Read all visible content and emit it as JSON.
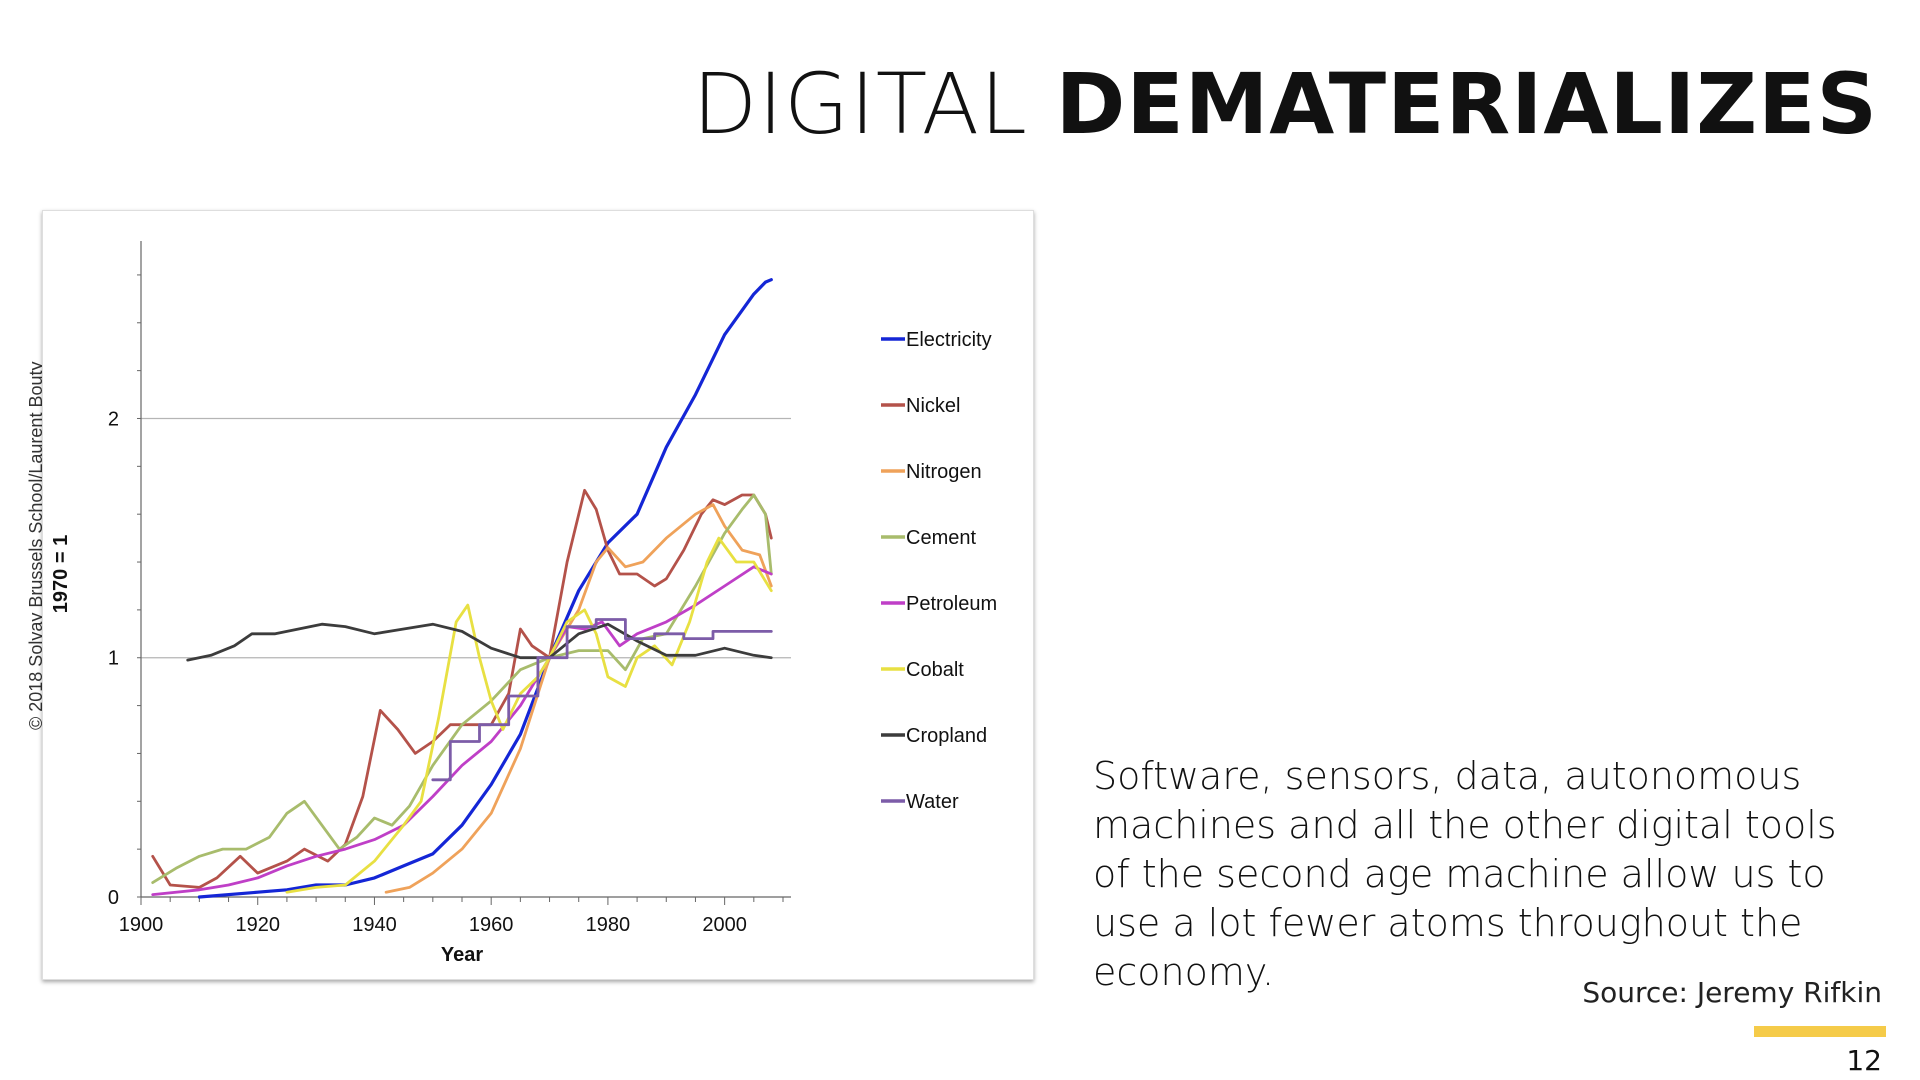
{
  "slide": {
    "title_light": "DIGITAL",
    "title_bold": "DEMATERIALIZES",
    "copyright": "© 2018 Solvay Brussels School/Laurent Bouty",
    "body": "Software, sensors, data, autonomous machines and all the other digital tools of the second age machine allow us to use a lot fewer atoms throughout the economy.",
    "source": "Source: Jeremy Rifkin",
    "page_number": "12",
    "accent_color": "#F5CB49"
  },
  "chart_data": {
    "type": "line",
    "xlabel": "Year",
    "ylabel": "1970 = 1",
    "xlim": [
      1900,
      2010
    ],
    "ylim": [
      0,
      2.7
    ],
    "x_ticks": [
      "1900",
      "1920",
      "1940",
      "1960",
      "1980",
      "2000"
    ],
    "y_ticks": [
      "0",
      "1",
      "2"
    ],
    "grid": "horizontal lines at 1 and 2",
    "legend_position": "right",
    "series": [
      {
        "name": "Electricity",
        "color": "#1426D6",
        "points": [
          [
            1910,
            0
          ],
          [
            1920,
            0.02
          ],
          [
            1925,
            0.03
          ],
          [
            1930,
            0.05
          ],
          [
            1935,
            0.05
          ],
          [
            1940,
            0.08
          ],
          [
            1945,
            0.13
          ],
          [
            1950,
            0.18
          ],
          [
            1955,
            0.3
          ],
          [
            1960,
            0.47
          ],
          [
            1965,
            0.68
          ],
          [
            1970,
            1.0
          ],
          [
            1975,
            1.28
          ],
          [
            1980,
            1.48
          ],
          [
            1985,
            1.6
          ],
          [
            1990,
            1.88
          ],
          [
            1995,
            2.1
          ],
          [
            2000,
            2.35
          ],
          [
            2005,
            2.52
          ],
          [
            2007,
            2.57
          ],
          [
            2008,
            2.58
          ]
        ]
      },
      {
        "name": "Nickel",
        "color": "#B4524A",
        "points": [
          [
            1902,
            0.17
          ],
          [
            1905,
            0.05
          ],
          [
            1910,
            0.04
          ],
          [
            1913,
            0.08
          ],
          [
            1917,
            0.17
          ],
          [
            1920,
            0.1
          ],
          [
            1925,
            0.15
          ],
          [
            1928,
            0.2
          ],
          [
            1932,
            0.15
          ],
          [
            1935,
            0.22
          ],
          [
            1938,
            0.42
          ],
          [
            1941,
            0.78
          ],
          [
            1944,
            0.7
          ],
          [
            1947,
            0.6
          ],
          [
            1950,
            0.65
          ],
          [
            1953,
            0.72
          ],
          [
            1956,
            0.72
          ],
          [
            1960,
            0.72
          ],
          [
            1963,
            0.85
          ],
          [
            1965,
            1.12
          ],
          [
            1967,
            1.05
          ],
          [
            1970,
            1.0
          ],
          [
            1973,
            1.4
          ],
          [
            1976,
            1.7
          ],
          [
            1978,
            1.62
          ],
          [
            1980,
            1.45
          ],
          [
            1982,
            1.35
          ],
          [
            1985,
            1.35
          ],
          [
            1988,
            1.3
          ],
          [
            1990,
            1.33
          ],
          [
            1993,
            1.45
          ],
          [
            1996,
            1.6
          ],
          [
            1998,
            1.66
          ],
          [
            2000,
            1.64
          ],
          [
            2003,
            1.68
          ],
          [
            2005,
            1.68
          ],
          [
            2007,
            1.6
          ],
          [
            2008,
            1.5
          ]
        ]
      },
      {
        "name": "Nitrogen",
        "color": "#EFA25A",
        "points": [
          [
            1942,
            0.02
          ],
          [
            1946,
            0.04
          ],
          [
            1950,
            0.1
          ],
          [
            1955,
            0.2
          ],
          [
            1960,
            0.35
          ],
          [
            1965,
            0.62
          ],
          [
            1970,
            1.0
          ],
          [
            1975,
            1.2
          ],
          [
            1978,
            1.4
          ],
          [
            1980,
            1.46
          ],
          [
            1983,
            1.38
          ],
          [
            1986,
            1.4
          ],
          [
            1990,
            1.5
          ],
          [
            1995,
            1.6
          ],
          [
            1998,
            1.64
          ],
          [
            2000,
            1.55
          ],
          [
            2003,
            1.45
          ],
          [
            2006,
            1.43
          ],
          [
            2008,
            1.3
          ]
        ]
      },
      {
        "name": "Cement",
        "color": "#A8BC6C",
        "points": [
          [
            1902,
            0.06
          ],
          [
            1906,
            0.12
          ],
          [
            1910,
            0.17
          ],
          [
            1914,
            0.2
          ],
          [
            1918,
            0.2
          ],
          [
            1922,
            0.25
          ],
          [
            1925,
            0.35
          ],
          [
            1928,
            0.4
          ],
          [
            1931,
            0.3
          ],
          [
            1934,
            0.2
          ],
          [
            1937,
            0.25
          ],
          [
            1940,
            0.33
          ],
          [
            1943,
            0.3
          ],
          [
            1946,
            0.38
          ],
          [
            1950,
            0.55
          ],
          [
            1955,
            0.72
          ],
          [
            1960,
            0.82
          ],
          [
            1965,
            0.95
          ],
          [
            1970,
            1.0
          ],
          [
            1975,
            1.03
          ],
          [
            1980,
            1.03
          ],
          [
            1983,
            0.95
          ],
          [
            1986,
            1.08
          ],
          [
            1990,
            1.1
          ],
          [
            1995,
            1.3
          ],
          [
            2000,
            1.52
          ],
          [
            2003,
            1.62
          ],
          [
            2005,
            1.68
          ],
          [
            2007,
            1.6
          ],
          [
            2008,
            1.35
          ]
        ]
      },
      {
        "name": "Petroleum",
        "color": "#BF3FC7",
        "points": [
          [
            1902,
            0.01
          ],
          [
            1910,
            0.03
          ],
          [
            1915,
            0.05
          ],
          [
            1920,
            0.08
          ],
          [
            1925,
            0.13
          ],
          [
            1930,
            0.17
          ],
          [
            1935,
            0.2
          ],
          [
            1940,
            0.24
          ],
          [
            1945,
            0.3
          ],
          [
            1950,
            0.42
          ],
          [
            1955,
            0.55
          ],
          [
            1960,
            0.65
          ],
          [
            1965,
            0.8
          ],
          [
            1970,
            1.0
          ],
          [
            1973,
            1.13
          ],
          [
            1976,
            1.12
          ],
          [
            1979,
            1.15
          ],
          [
            1982,
            1.05
          ],
          [
            1985,
            1.1
          ],
          [
            1990,
            1.15
          ],
          [
            1995,
            1.22
          ],
          [
            2000,
            1.3
          ],
          [
            2005,
            1.38
          ],
          [
            2008,
            1.35
          ]
        ]
      },
      {
        "name": "Cobalt",
        "color": "#E8E042",
        "points": [
          [
            1925,
            0.02
          ],
          [
            1930,
            0.04
          ],
          [
            1935,
            0.05
          ],
          [
            1940,
            0.15
          ],
          [
            1945,
            0.3
          ],
          [
            1948,
            0.4
          ],
          [
            1951,
            0.75
          ],
          [
            1954,
            1.15
          ],
          [
            1956,
            1.22
          ],
          [
            1958,
            1.0
          ],
          [
            1960,
            0.82
          ],
          [
            1962,
            0.7
          ],
          [
            1965,
            0.85
          ],
          [
            1968,
            0.92
          ],
          [
            1970,
            1.0
          ],
          [
            1973,
            1.15
          ],
          [
            1976,
            1.2
          ],
          [
            1978,
            1.1
          ],
          [
            1980,
            0.92
          ],
          [
            1983,
            0.88
          ],
          [
            1985,
            1.0
          ],
          [
            1988,
            1.05
          ],
          [
            1991,
            0.97
          ],
          [
            1994,
            1.15
          ],
          [
            1997,
            1.4
          ],
          [
            1999,
            1.5
          ],
          [
            2002,
            1.4
          ],
          [
            2005,
            1.4
          ],
          [
            2008,
            1.28
          ]
        ]
      },
      {
        "name": "Cropland",
        "color": "#3C3C3C",
        "points": [
          [
            1908,
            0.99
          ],
          [
            1912,
            1.01
          ],
          [
            1916,
            1.05
          ],
          [
            1919,
            1.1
          ],
          [
            1923,
            1.1
          ],
          [
            1927,
            1.12
          ],
          [
            1931,
            1.14
          ],
          [
            1935,
            1.13
          ],
          [
            1940,
            1.1
          ],
          [
            1945,
            1.12
          ],
          [
            1950,
            1.14
          ],
          [
            1955,
            1.11
          ],
          [
            1960,
            1.04
          ],
          [
            1965,
            1.0
          ],
          [
            1970,
            1.0
          ],
          [
            1975,
            1.1
          ],
          [
            1980,
            1.14
          ],
          [
            1985,
            1.07
          ],
          [
            1990,
            1.01
          ],
          [
            1995,
            1.01
          ],
          [
            2000,
            1.04
          ],
          [
            2005,
            1.01
          ],
          [
            2008,
            1.0
          ]
        ]
      },
      {
        "name": "Water",
        "color": "#7C5CA8",
        "points": [
          [
            1950,
            0.49
          ],
          [
            1953,
            0.49
          ],
          [
            1953,
            0.65
          ],
          [
            1958,
            0.65
          ],
          [
            1958,
            0.72
          ],
          [
            1963,
            0.72
          ],
          [
            1963,
            0.84
          ],
          [
            1968,
            0.84
          ],
          [
            1968,
            1.0
          ],
          [
            1973,
            1.0
          ],
          [
            1973,
            1.13
          ],
          [
            1978,
            1.13
          ],
          [
            1978,
            1.16
          ],
          [
            1983,
            1.16
          ],
          [
            1983,
            1.08
          ],
          [
            1988,
            1.08
          ],
          [
            1988,
            1.1
          ],
          [
            1993,
            1.1
          ],
          [
            1993,
            1.08
          ],
          [
            1998,
            1.08
          ],
          [
            1998,
            1.11
          ],
          [
            2008,
            1.11
          ]
        ]
      }
    ]
  }
}
